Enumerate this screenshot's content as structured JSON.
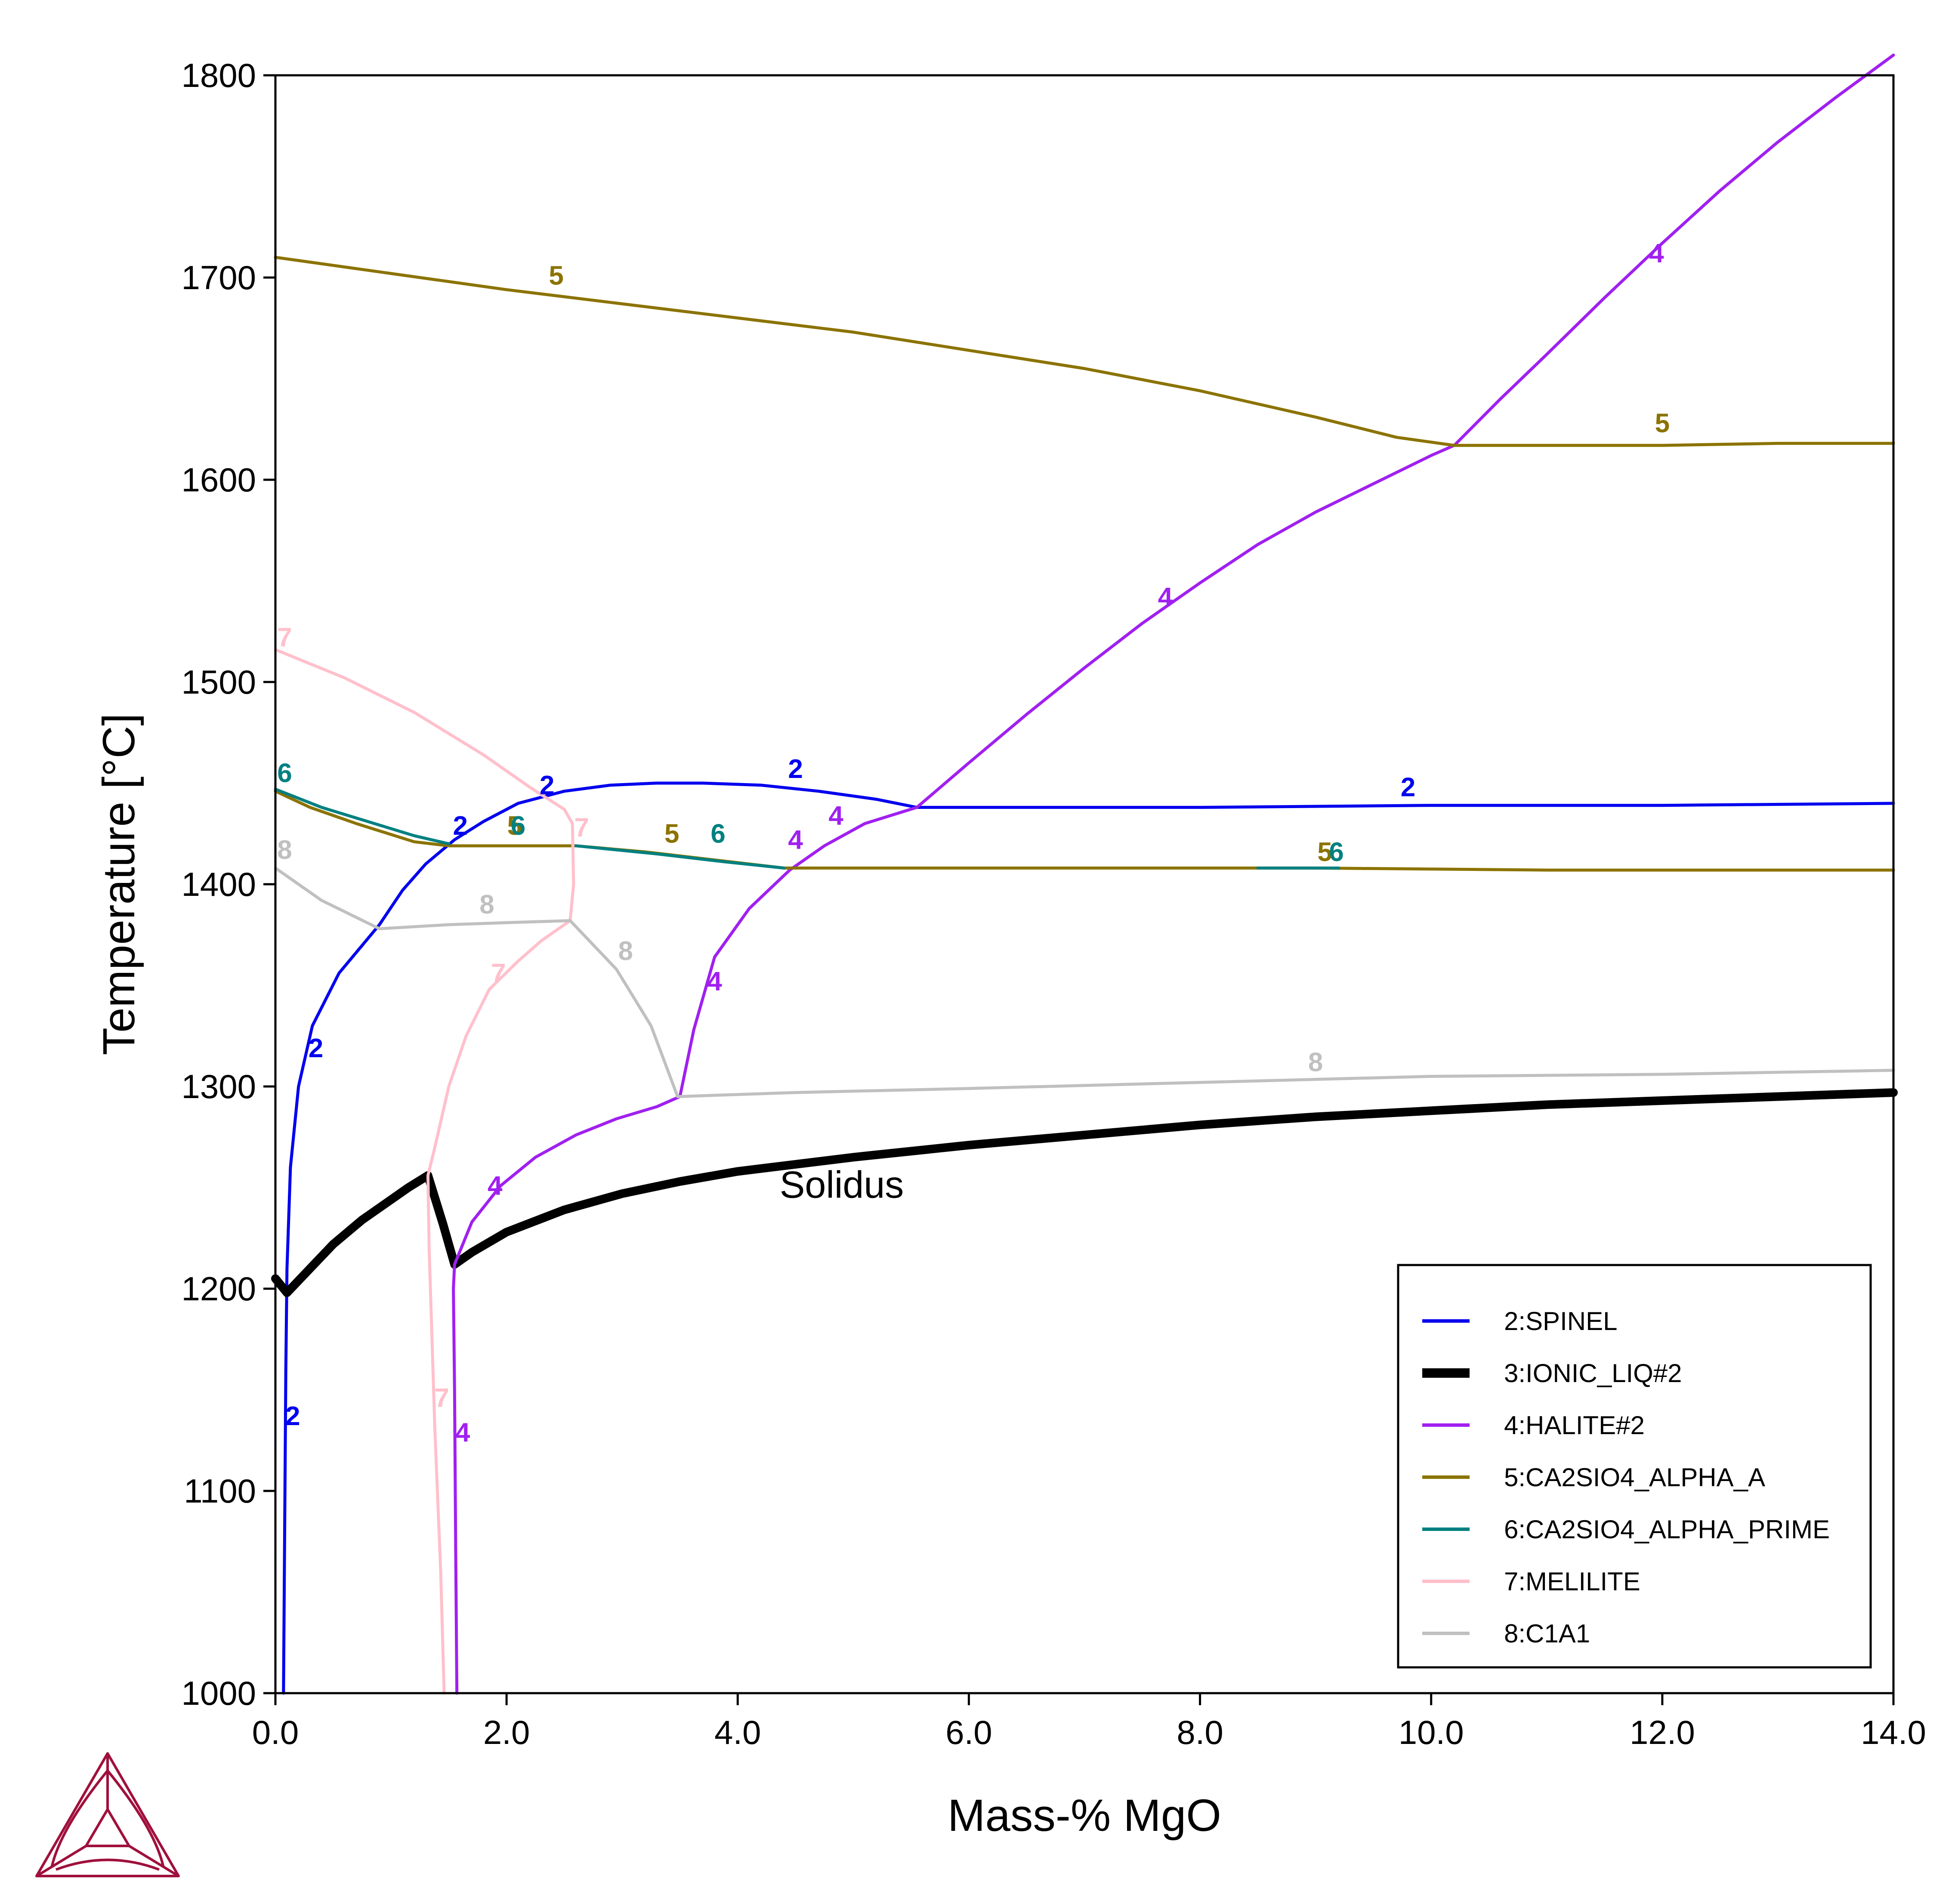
{
  "chart_data": {
    "type": "line",
    "xlabel": "Mass-% MgO",
    "ylabel": "Temperature [°C]",
    "xlim": [
      0.0,
      14.0
    ],
    "ylim": [
      1000,
      1800
    ],
    "x_ticks": [
      0,
      2,
      4,
      6,
      8,
      10,
      12,
      14
    ],
    "x_tick_labels": [
      "0.0",
      "2.0",
      "4.0",
      "6.0",
      "8.0",
      "10.0",
      "12.0",
      "14.0"
    ],
    "y_ticks": [
      1000,
      1100,
      1200,
      1300,
      1400,
      1500,
      1600,
      1700,
      1800
    ],
    "y_tick_labels": [
      "1000",
      "1100",
      "1200",
      "1300",
      "1400",
      "1500",
      "1600",
      "1700",
      "1800"
    ],
    "grid": false,
    "legend_position": "bottom-right",
    "annotations": [
      {
        "text": "Solidus",
        "x": 4.9,
        "y": 1245
      }
    ],
    "series": [
      {
        "name": "2:SPINEL",
        "color": "#0000ee",
        "width": "thin",
        "segments": [
          [
            [
              0.07,
              1000
            ],
            [
              0.08,
              1080
            ],
            [
              0.09,
              1160
            ],
            [
              0.1,
              1210
            ],
            [
              0.13,
              1260
            ],
            [
              0.2,
              1300
            ],
            [
              0.32,
              1330
            ],
            [
              0.55,
              1356
            ],
            [
              0.9,
              1380
            ],
            [
              1.1,
              1397
            ],
            [
              1.3,
              1410
            ],
            [
              1.55,
              1422
            ],
            [
              1.8,
              1431
            ],
            [
              2.1,
              1440
            ],
            [
              2.5,
              1446
            ],
            [
              2.9,
              1449
            ],
            [
              3.3,
              1450
            ],
            [
              3.7,
              1450
            ],
            [
              4.2,
              1449
            ],
            [
              4.7,
              1446
            ],
            [
              5.2,
              1442
            ],
            [
              5.55,
              1438
            ],
            [
              6.5,
              1438
            ],
            [
              8,
              1438
            ],
            [
              10,
              1439
            ],
            [
              12,
              1439
            ],
            [
              14,
              1440
            ]
          ]
        ],
        "labels": [
          {
            "text": "2",
            "x": 0.15,
            "y": 1136
          },
          {
            "text": "2",
            "x": 0.35,
            "y": 1318
          },
          {
            "text": "2",
            "x": 1.6,
            "y": 1428
          },
          {
            "text": "2",
            "x": 2.35,
            "y": 1448
          },
          {
            "text": "2",
            "x": 4.5,
            "y": 1456
          },
          {
            "text": "2",
            "x": 9.8,
            "y": 1447
          }
        ]
      },
      {
        "name": "3:IONIC_LIQ#2",
        "color": "#000000",
        "width": "thick",
        "segments": [
          [
            [
              0,
              1205
            ],
            [
              0.1,
              1198
            ],
            [
              0.3,
              1210
            ],
            [
              0.5,
              1222
            ],
            [
              0.75,
              1234
            ],
            [
              1.0,
              1244
            ],
            [
              1.15,
              1250
            ],
            [
              1.32,
              1256
            ],
            [
              1.45,
              1232
            ],
            [
              1.55,
              1212
            ],
            [
              1.7,
              1218
            ],
            [
              2.0,
              1228
            ],
            [
              2.5,
              1239
            ],
            [
              3.0,
              1247
            ],
            [
              3.5,
              1253
            ],
            [
              4.0,
              1258
            ],
            [
              5.0,
              1265
            ],
            [
              6.0,
              1271
            ],
            [
              7.0,
              1276
            ],
            [
              8.0,
              1281
            ],
            [
              9.0,
              1285
            ],
            [
              10.0,
              1288
            ],
            [
              11.0,
              1291
            ],
            [
              12.0,
              1293
            ],
            [
              13.0,
              1295
            ],
            [
              14.0,
              1297
            ]
          ]
        ],
        "labels": []
      },
      {
        "name": "4:HALITE#2",
        "color": "#a020f0",
        "width": "thin",
        "segments": [
          [
            [
              1.57,
              1000
            ],
            [
              1.56,
              1070
            ],
            [
              1.55,
              1150
            ],
            [
              1.54,
              1200
            ],
            [
              1.55,
              1212
            ],
            [
              1.7,
              1233
            ],
            [
              1.95,
              1251
            ],
            [
              2.25,
              1265
            ],
            [
              2.6,
              1276
            ],
            [
              2.95,
              1284
            ],
            [
              3.3,
              1290
            ],
            [
              3.5,
              1295
            ],
            [
              3.62,
              1328
            ],
            [
              3.8,
              1364
            ],
            [
              4.1,
              1388
            ],
            [
              4.45,
              1407
            ],
            [
              4.75,
              1419
            ],
            [
              5.1,
              1430
            ],
            [
              5.55,
              1438
            ],
            [
              6.0,
              1460
            ],
            [
              6.5,
              1484
            ],
            [
              7.0,
              1507
            ],
            [
              7.5,
              1529
            ],
            [
              8.0,
              1549
            ],
            [
              8.5,
              1568
            ],
            [
              9.0,
              1584
            ],
            [
              9.5,
              1598
            ],
            [
              10.0,
              1612
            ],
            [
              10.2,
              1617
            ],
            [
              10.6,
              1640
            ],
            [
              11.0,
              1662
            ],
            [
              11.5,
              1690
            ],
            [
              12.0,
              1717
            ],
            [
              12.5,
              1743
            ],
            [
              13.0,
              1767
            ],
            [
              13.5,
              1789
            ],
            [
              14.0,
              1810
            ]
          ]
        ],
        "labels": [
          {
            "text": "4",
            "x": 1.62,
            "y": 1128
          },
          {
            "text": "4",
            "x": 1.9,
            "y": 1250
          },
          {
            "text": "4",
            "x": 3.8,
            "y": 1351
          },
          {
            "text": "4",
            "x": 4.5,
            "y": 1421
          },
          {
            "text": "4",
            "x": 4.85,
            "y": 1433
          },
          {
            "text": "4",
            "x": 7.7,
            "y": 1541
          },
          {
            "text": "4",
            "x": 11.95,
            "y": 1711
          }
        ]
      },
      {
        "name": "5:CA2SIO4_ALPHA_A",
        "color": "#8b7300",
        "width": "thin",
        "segments": [
          [
            [
              0,
              1710
            ],
            [
              1,
              1702
            ],
            [
              2,
              1694
            ],
            [
              3,
              1687
            ],
            [
              4,
              1680
            ],
            [
              5,
              1673
            ],
            [
              6,
              1664
            ],
            [
              7,
              1655
            ],
            [
              8,
              1644
            ],
            [
              9,
              1631
            ],
            [
              9.7,
              1621
            ],
            [
              10.2,
              1617
            ],
            [
              11,
              1617
            ],
            [
              12,
              1617
            ],
            [
              13,
              1618
            ],
            [
              14,
              1618
            ]
          ],
          [
            [
              0,
              1446
            ],
            [
              0.3,
              1438
            ],
            [
              0.7,
              1430
            ],
            [
              1.2,
              1421
            ],
            [
              1.5,
              1419
            ],
            [
              2.0,
              1419
            ],
            [
              2.6,
              1419
            ],
            [
              3.2,
              1416
            ],
            [
              3.8,
              1412
            ],
            [
              4.4,
              1408
            ],
            [
              5,
              1408
            ],
            [
              7,
              1408
            ],
            [
              9,
              1408
            ],
            [
              11,
              1407
            ],
            [
              14,
              1407
            ]
          ]
        ],
        "labels": [
          {
            "text": "5",
            "x": 2.43,
            "y": 1700
          },
          {
            "text": "5",
            "x": 12.0,
            "y": 1627
          },
          {
            "text": "5",
            "x": 2.07,
            "y": 1428
          },
          {
            "text": "5",
            "x": 3.43,
            "y": 1424
          },
          {
            "text": "5",
            "x": 9.08,
            "y": 1415
          }
        ]
      },
      {
        "name": "6:CA2SIO4_ALPHA_PRIME",
        "color": "#008080",
        "width": "thin",
        "segments": [
          [
            [
              0,
              1447
            ],
            [
              0.4,
              1438
            ],
            [
              0.8,
              1431
            ],
            [
              1.2,
              1424
            ],
            [
              1.5,
              1420
            ]
          ],
          [
            [
              2.6,
              1419
            ],
            [
              3.3,
              1415
            ],
            [
              3.9,
              1411
            ],
            [
              4.4,
              1408
            ]
          ],
          [
            [
              8.5,
              1408
            ],
            [
              9.2,
              1408
            ]
          ]
        ],
        "labels": [
          {
            "text": "6",
            "x": 0.08,
            "y": 1454
          },
          {
            "text": "6",
            "x": 2.1,
            "y": 1428
          },
          {
            "text": "6",
            "x": 3.83,
            "y": 1424
          },
          {
            "text": "6",
            "x": 9.18,
            "y": 1415
          }
        ]
      },
      {
        "name": "7:MELILITE",
        "color": "#ffc0cb",
        "width": "thin",
        "segments": [
          [
            [
              0,
              1516
            ],
            [
              0.6,
              1502
            ],
            [
              1.2,
              1485
            ],
            [
              1.8,
              1464
            ],
            [
              2.2,
              1448
            ],
            [
              2.5,
              1437
            ],
            [
              2.57,
              1430
            ],
            [
              2.58,
              1400
            ],
            [
              2.55,
              1382
            ],
            [
              2.3,
              1372
            ],
            [
              2.1,
              1362
            ],
            [
              1.85,
              1348
            ],
            [
              1.65,
              1325
            ],
            [
              1.5,
              1300
            ],
            [
              1.38,
              1270
            ],
            [
              1.32,
              1256
            ],
            [
              1.33,
              1220
            ],
            [
              1.38,
              1130
            ],
            [
              1.43,
              1060
            ],
            [
              1.46,
              1000
            ]
          ]
        ],
        "labels": [
          {
            "text": "7",
            "x": 0.08,
            "y": 1521
          },
          {
            "text": "7",
            "x": 2.65,
            "y": 1427
          },
          {
            "text": "7",
            "x": 1.93,
            "y": 1355
          },
          {
            "text": "7",
            "x": 1.44,
            "y": 1145
          }
        ]
      },
      {
        "name": "8:C1A1",
        "color": "#c0c0c0",
        "width": "thin",
        "segments": [
          [
            [
              0,
              1408
            ],
            [
              0.4,
              1392
            ],
            [
              0.9,
              1378
            ],
            [
              1.5,
              1380
            ],
            [
              2.0,
              1381
            ],
            [
              2.55,
              1382
            ],
            [
              2.95,
              1358
            ],
            [
              3.25,
              1330
            ],
            [
              3.48,
              1295
            ],
            [
              4.5,
              1297
            ],
            [
              6,
              1299
            ],
            [
              8,
              1302
            ],
            [
              10,
              1305
            ],
            [
              12,
              1306
            ],
            [
              14,
              1308
            ]
          ]
        ],
        "labels": [
          {
            "text": "8",
            "x": 0.08,
            "y": 1416
          },
          {
            "text": "8",
            "x": 1.83,
            "y": 1389
          },
          {
            "text": "8",
            "x": 3.03,
            "y": 1366
          },
          {
            "text": "8",
            "x": 9.0,
            "y": 1311
          }
        ]
      }
    ]
  }
}
